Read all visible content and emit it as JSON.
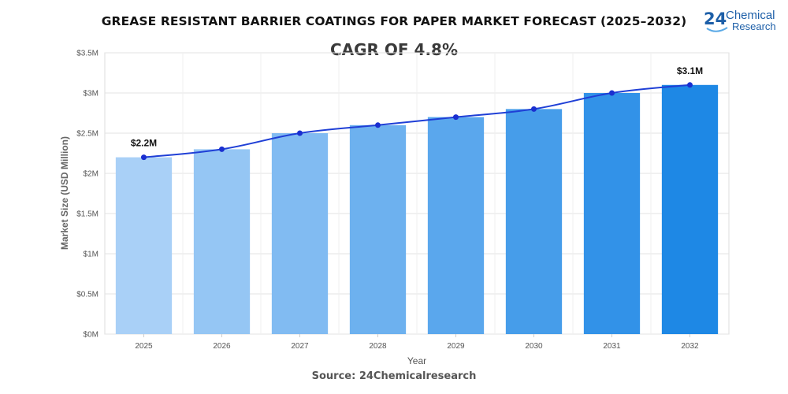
{
  "header": {
    "title": "GREASE RESISTANT BARRIER COATINGS FOR PAPER MARKET FORECAST (2025–2032)",
    "cagr": "CAGR OF 4.8%"
  },
  "logo": {
    "number": "24",
    "word1": "Chemical",
    "word2": "Research"
  },
  "footer": {
    "source": "Source: 24Chemicalresearch"
  },
  "colors": {
    "line": "#1f3fd6",
    "point": "#1a2fd0",
    "bar_start": "#a9d0f7",
    "bar_end": "#1e88e5",
    "grid": "#e3e3e3"
  },
  "chart_data": {
    "type": "bar",
    "categories": [
      "2025",
      "2026",
      "2027",
      "2028",
      "2029",
      "2030",
      "2031",
      "2032"
    ],
    "series": [
      {
        "values": [
          2.2,
          2.3,
          2.5,
          2.6,
          2.7,
          2.8,
          3.0,
          3.1
        ]
      }
    ],
    "line_overlay": true,
    "xlabel": "Year",
    "ylabel": "Market Size (USD Million)",
    "ylim": [
      0,
      3.5
    ],
    "yticks": [
      0,
      0.5,
      1,
      1.5,
      2,
      2.5,
      3,
      3.5
    ],
    "ytick_labels": [
      "$0M",
      "$0.5M",
      "$1M",
      "$1.5M",
      "$2M",
      "$2.5M",
      "$3M",
      "$3.5M"
    ],
    "data_labels": [
      {
        "index": 0,
        "text": "$2.2M"
      },
      {
        "index": 7,
        "text": "$3.1M"
      }
    ],
    "grid": true
  }
}
